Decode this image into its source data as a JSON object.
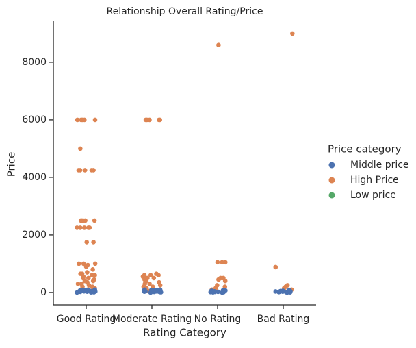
{
  "chart_data": {
    "type": "strip",
    "title": "Relationship Overall Rating/Price",
    "x_label": "Rating Category",
    "y_label": "Price",
    "categories": [
      "Good Rating",
      "Moderate Rating",
      "No Rating",
      "Bad Rating"
    ],
    "legend_title": "Price category",
    "legend": "right",
    "ylim": [
      -430,
      9450
    ],
    "yticks": [
      0,
      2000,
      4000,
      6000,
      8000
    ],
    "series": [
      {
        "name": "Middle price",
        "color": "#4c72b0",
        "values": [
          [
            0,
            10,
            20,
            30,
            40,
            50,
            60,
            70,
            80,
            90,
            100,
            15,
            25,
            35,
            45,
            55,
            65,
            75,
            85,
            95,
            5
          ],
          [
            0,
            10,
            20,
            30,
            40,
            50,
            60,
            70,
            80,
            90,
            100,
            15,
            25,
            35,
            45,
            55,
            65,
            75,
            85,
            95,
            5
          ],
          [
            0,
            10,
            20,
            30,
            40,
            50,
            60,
            70,
            80,
            15,
            25,
            35,
            45,
            5
          ],
          [
            0,
            10,
            20,
            30,
            40,
            50,
            60,
            70,
            80,
            15,
            25,
            35,
            45,
            5
          ]
        ]
      },
      {
        "name": "High Price",
        "color": "#dd8452",
        "values": [
          [
            6000,
            6000,
            6000,
            6000,
            6000,
            5000,
            4250,
            4250,
            4250,
            4250,
            4250,
            2500,
            2500,
            2500,
            2500,
            2500,
            2250,
            2250,
            2250,
            2250,
            2250,
            1750,
            1750,
            1000,
            1000,
            1000,
            950,
            900,
            800,
            700,
            650,
            600,
            550,
            500,
            450,
            400,
            350,
            300,
            250,
            200,
            150,
            100,
            650,
            600,
            500,
            400,
            300,
            200,
            100,
            50
          ],
          [
            6000,
            6000,
            6000,
            6000,
            6000,
            650,
            600,
            600,
            550,
            500,
            450,
            400,
            350,
            300,
            250,
            200,
            150,
            100,
            50,
            600,
            500,
            400,
            300,
            200
          ],
          [
            8600,
            1050,
            1050,
            1050,
            500,
            500,
            450,
            400,
            250,
            200,
            150,
            100,
            50
          ],
          [
            9000,
            880,
            250,
            200,
            150,
            100,
            50
          ]
        ]
      },
      {
        "name": "Low price",
        "color": "#55a868",
        "values": [
          [],
          [],
          [],
          []
        ]
      }
    ]
  }
}
